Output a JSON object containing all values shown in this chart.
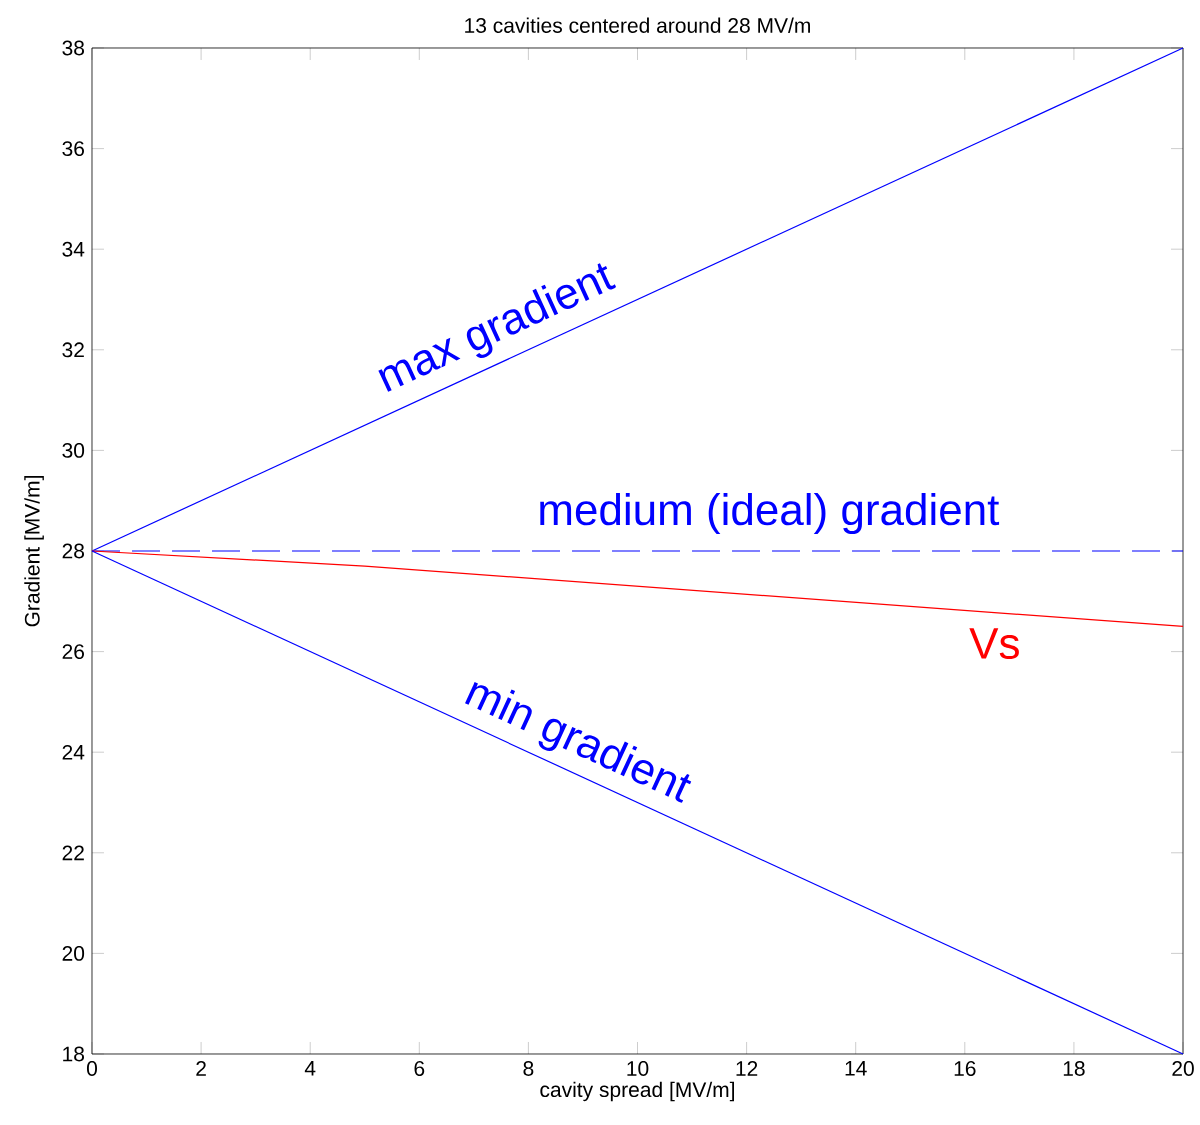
{
  "chart_data": {
    "type": "line",
    "title": "13 cavities centered around 28 MV/m",
    "xlabel": "cavity spread [MV/m]",
    "ylabel": "Gradient   [MV/m]",
    "xlim": [
      0,
      20
    ],
    "ylim": [
      18,
      38
    ],
    "xticks": [
      0,
      2,
      4,
      6,
      8,
      10,
      12,
      14,
      16,
      18,
      20
    ],
    "yticks": [
      18,
      20,
      22,
      24,
      26,
      28,
      30,
      32,
      34,
      36,
      38
    ],
    "grid": false,
    "series": [
      {
        "name": "max gradient",
        "color": "#0000ff",
        "x": [
          0,
          20
        ],
        "values": [
          28,
          38
        ],
        "line_style": "solid"
      },
      {
        "name": "medium (ideal) gradient",
        "color": "#0000ff",
        "x": [
          0,
          20
        ],
        "values": [
          28,
          28
        ],
        "line_style": "dashed"
      },
      {
        "name": "Vs",
        "color": "#ff0000",
        "x": [
          0,
          5,
          10,
          15,
          20
        ],
        "values": [
          28,
          27.7,
          27.3,
          26.9,
          26.5
        ],
        "line_style": "solid"
      },
      {
        "name": "min gradient",
        "color": "#0000ff",
        "x": [
          0,
          20
        ],
        "values": [
          28,
          18
        ],
        "line_style": "solid"
      }
    ]
  }
}
